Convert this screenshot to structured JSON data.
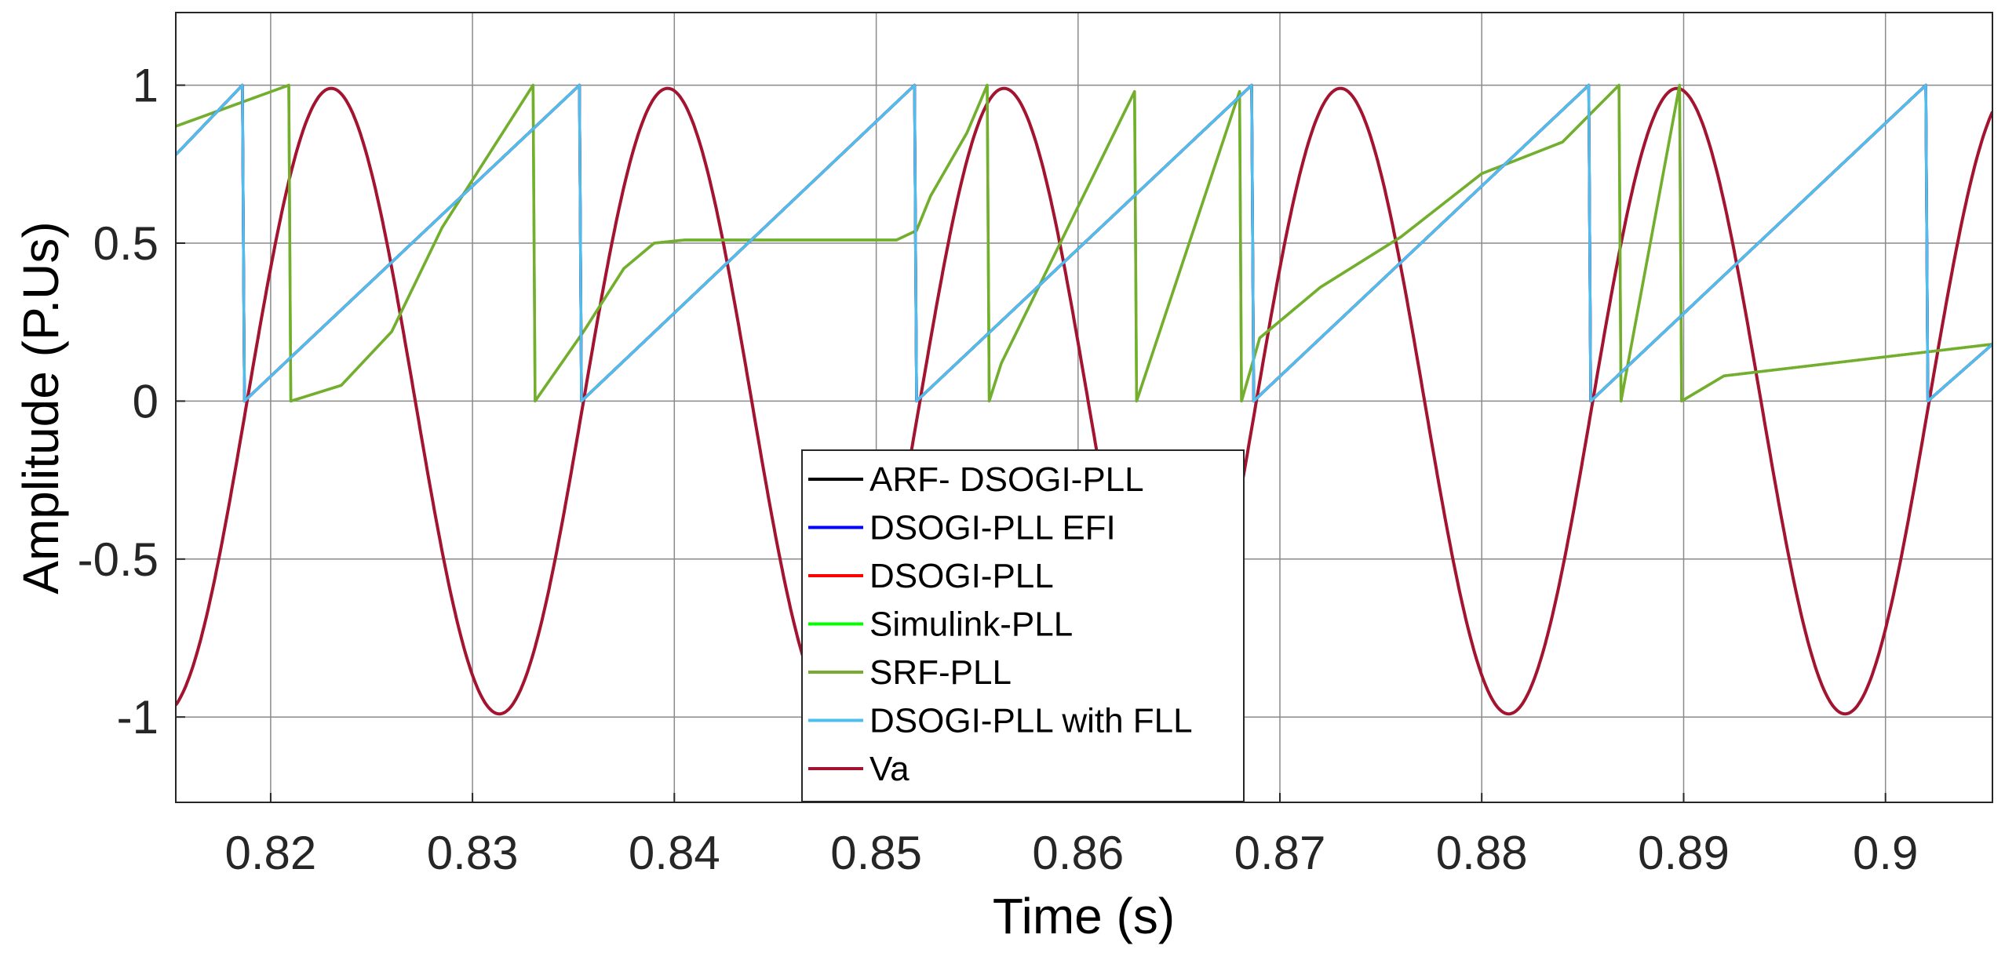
{
  "chart_data": {
    "type": "line",
    "title": "",
    "xlabel": "Time (s)",
    "ylabel": "Amplitude (P.Us)",
    "xlim": [
      0.8153,
      0.9053
    ],
    "ylim": [
      -1.27,
      1.23
    ],
    "grid": true,
    "legend_position": "bottom-center",
    "x_ticks": [
      0.82,
      0.83,
      0.84,
      0.85,
      0.86,
      0.87,
      0.88,
      0.89,
      0.9
    ],
    "x_tick_labels": [
      "0.82",
      "0.83",
      "0.84",
      "0.85",
      "0.86",
      "0.87",
      "0.88",
      "0.89",
      "0.9"
    ],
    "y_ticks": [
      1,
      0.5,
      0,
      -0.5,
      -1
    ],
    "y_tick_labels": [
      "1",
      "0.5",
      "0",
      "-0.5",
      "-1"
    ],
    "series": [
      {
        "name": "ARF- DSOGI-PLL",
        "color": "#000000",
        "points": [
          [
            0.8153,
            0.78
          ],
          [
            0.8186,
            1.0
          ],
          [
            0.8187,
            0.0
          ],
          [
            0.8353,
            1.0
          ],
          [
            0.8354,
            0.0
          ],
          [
            0.8519,
            1.0
          ],
          [
            0.852,
            0.0
          ],
          [
            0.8686,
            1.0
          ],
          [
            0.8687,
            0.0
          ],
          [
            0.8853,
            1.0
          ],
          [
            0.8854,
            0.0
          ],
          [
            0.902,
            1.0
          ],
          [
            0.9021,
            0.0
          ],
          [
            0.9053,
            0.18
          ]
        ]
      },
      {
        "name": "DSOGI-PLL EFI",
        "color": "#0000ff",
        "points": [
          [
            0.8153,
            0.78
          ],
          [
            0.8186,
            1.0
          ],
          [
            0.8187,
            0.0
          ],
          [
            0.8353,
            1.0
          ],
          [
            0.8354,
            0.0
          ],
          [
            0.8519,
            1.0
          ],
          [
            0.852,
            0.0
          ],
          [
            0.8686,
            1.0
          ],
          [
            0.8687,
            0.0
          ],
          [
            0.8853,
            1.0
          ],
          [
            0.8854,
            0.0
          ],
          [
            0.902,
            1.0
          ],
          [
            0.9021,
            0.0
          ],
          [
            0.9053,
            0.18
          ]
        ]
      },
      {
        "name": "DSOGI-PLL",
        "color": "#ff0000",
        "points": [
          [
            0.8153,
            0.78
          ],
          [
            0.8186,
            1.0
          ],
          [
            0.8187,
            0.0
          ],
          [
            0.8353,
            1.0
          ],
          [
            0.8354,
            0.0
          ],
          [
            0.8519,
            1.0
          ],
          [
            0.852,
            0.0
          ],
          [
            0.8686,
            1.0
          ],
          [
            0.8687,
            0.0
          ],
          [
            0.8853,
            1.0
          ],
          [
            0.8854,
            0.0
          ],
          [
            0.902,
            1.0
          ],
          [
            0.9021,
            0.0
          ],
          [
            0.9053,
            0.18
          ]
        ]
      },
      {
        "name": "Simulink-PLL",
        "color": "#00ff00",
        "points": [
          [
            0.8153,
            0.87
          ],
          [
            0.8209,
            1.0
          ],
          [
            0.821,
            0.0
          ],
          [
            0.8235,
            0.05
          ],
          [
            0.826,
            0.22
          ],
          [
            0.8285,
            0.55
          ],
          [
            0.833,
            1.0
          ],
          [
            0.8331,
            0.0
          ],
          [
            0.8355,
            0.22
          ],
          [
            0.8375,
            0.42
          ],
          [
            0.839,
            0.5
          ],
          [
            0.8405,
            0.51
          ],
          [
            0.851,
            0.51
          ],
          [
            0.852,
            0.54
          ],
          [
            0.8527,
            0.65
          ],
          [
            0.8545,
            0.85
          ],
          [
            0.8555,
            1.0
          ],
          [
            0.8556,
            0.0
          ],
          [
            0.8562,
            0.12
          ],
          [
            0.8628,
            0.98
          ],
          [
            0.8629,
            0.0
          ],
          [
            0.868,
            0.98
          ],
          [
            0.8681,
            0.0
          ],
          [
            0.869,
            0.2
          ],
          [
            0.872,
            0.36
          ],
          [
            0.876,
            0.52
          ],
          [
            0.88,
            0.72
          ],
          [
            0.884,
            0.82
          ],
          [
            0.8868,
            1.0
          ],
          [
            0.8869,
            0.0
          ],
          [
            0.8898,
            1.0
          ],
          [
            0.8899,
            0.0
          ],
          [
            0.892,
            0.08
          ],
          [
            0.9053,
            0.18
          ]
        ]
      },
      {
        "name": "SRF-PLL",
        "color": "#77ac30",
        "points": [
          [
            0.8153,
            0.87
          ],
          [
            0.8209,
            1.0
          ],
          [
            0.821,
            0.0
          ],
          [
            0.8235,
            0.05
          ],
          [
            0.826,
            0.22
          ],
          [
            0.8285,
            0.55
          ],
          [
            0.833,
            1.0
          ],
          [
            0.8331,
            0.0
          ],
          [
            0.8355,
            0.22
          ],
          [
            0.8375,
            0.42
          ],
          [
            0.839,
            0.5
          ],
          [
            0.8405,
            0.51
          ],
          [
            0.851,
            0.51
          ],
          [
            0.852,
            0.54
          ],
          [
            0.8527,
            0.65
          ],
          [
            0.8545,
            0.85
          ],
          [
            0.8555,
            1.0
          ],
          [
            0.8556,
            0.0
          ],
          [
            0.8562,
            0.12
          ],
          [
            0.8628,
            0.98
          ],
          [
            0.8629,
            0.0
          ],
          [
            0.868,
            0.98
          ],
          [
            0.8681,
            0.0
          ],
          [
            0.869,
            0.2
          ],
          [
            0.872,
            0.36
          ],
          [
            0.876,
            0.52
          ],
          [
            0.88,
            0.72
          ],
          [
            0.884,
            0.82
          ],
          [
            0.8868,
            1.0
          ],
          [
            0.8869,
            0.0
          ],
          [
            0.8898,
            1.0
          ],
          [
            0.8899,
            0.0
          ],
          [
            0.892,
            0.08
          ],
          [
            0.9053,
            0.18
          ]
        ]
      },
      {
        "name": "DSOGI-PLL with FLL",
        "color": "#4dbeee",
        "points": [
          [
            0.8153,
            0.78
          ],
          [
            0.8186,
            1.0
          ],
          [
            0.8187,
            0.0
          ],
          [
            0.8353,
            1.0
          ],
          [
            0.8354,
            0.0
          ],
          [
            0.8519,
            1.0
          ],
          [
            0.852,
            0.0
          ],
          [
            0.8686,
            1.0
          ],
          [
            0.8687,
            0.0
          ],
          [
            0.8853,
            1.0
          ],
          [
            0.8854,
            0.0
          ],
          [
            0.902,
            1.0
          ],
          [
            0.9021,
            0.0
          ],
          [
            0.9053,
            0.18
          ]
        ]
      },
      {
        "name": "Va",
        "color": "#a2142f",
        "waveform": {
          "type": "cosine",
          "amplitude": 0.99,
          "frequency_hz": 60,
          "peak_time_s": 0.823
        }
      }
    ]
  }
}
